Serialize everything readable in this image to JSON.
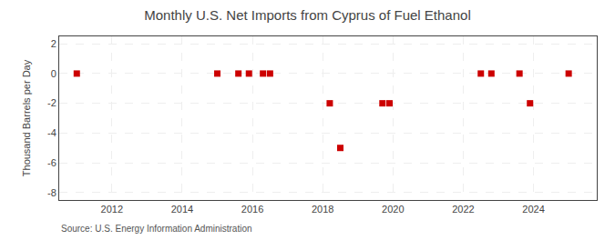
{
  "chart_data": {
    "type": "scatter",
    "title": "Monthly U.S. Net Imports from Cyprus of Fuel Ethanol",
    "ylabel": "Thousand Barrels per Day",
    "source": "Source: U.S. Energy Information Administration",
    "x": [
      2011.0,
      2015.0,
      2015.6,
      2015.9,
      2016.3,
      2016.5,
      2018.2,
      2018.5,
      2019.7,
      2019.9,
      2022.5,
      2022.8,
      2023.6,
      2023.9,
      2025.0
    ],
    "values": [
      0,
      0,
      0,
      0,
      0,
      0,
      -2,
      -5,
      -2,
      -2,
      0,
      0,
      0,
      -2,
      0
    ],
    "color": "#cc0000",
    "marker": "square",
    "xlim": [
      2010.5,
      2025.8
    ],
    "ylim": [
      -8.5,
      2.5
    ],
    "xticks": [
      2012,
      2014,
      2016,
      2018,
      2020,
      2022,
      2024
    ],
    "yticks": [
      2,
      0,
      -2,
      -4,
      -6,
      -8
    ],
    "grid": true
  }
}
